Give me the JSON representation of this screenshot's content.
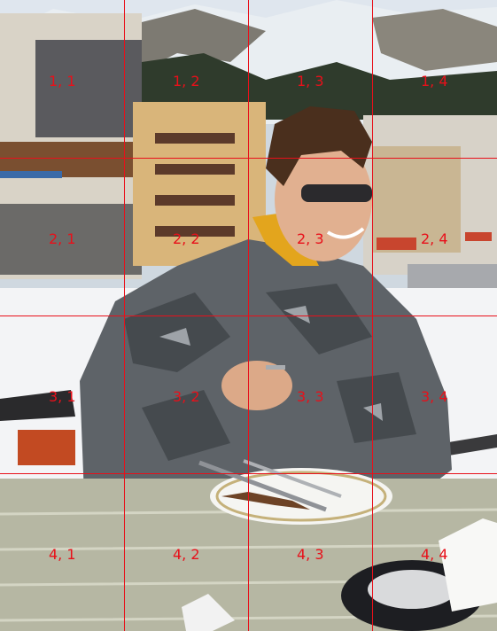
{
  "grid": {
    "line_color": "#e8101a",
    "rows": 4,
    "cols": 4,
    "labels": [
      [
        "1, 1",
        "1, 2",
        "1, 3",
        "1, 4"
      ],
      [
        "2, 1",
        "2, 2",
        "2, 3",
        "2, 4"
      ],
      [
        "3, 1",
        "3, 2",
        "3, 3",
        "3, 4"
      ],
      [
        "4, 1",
        "4, 2",
        "4, 3",
        "4, 4"
      ]
    ]
  },
  "receipt": {
    "text": ""
  }
}
